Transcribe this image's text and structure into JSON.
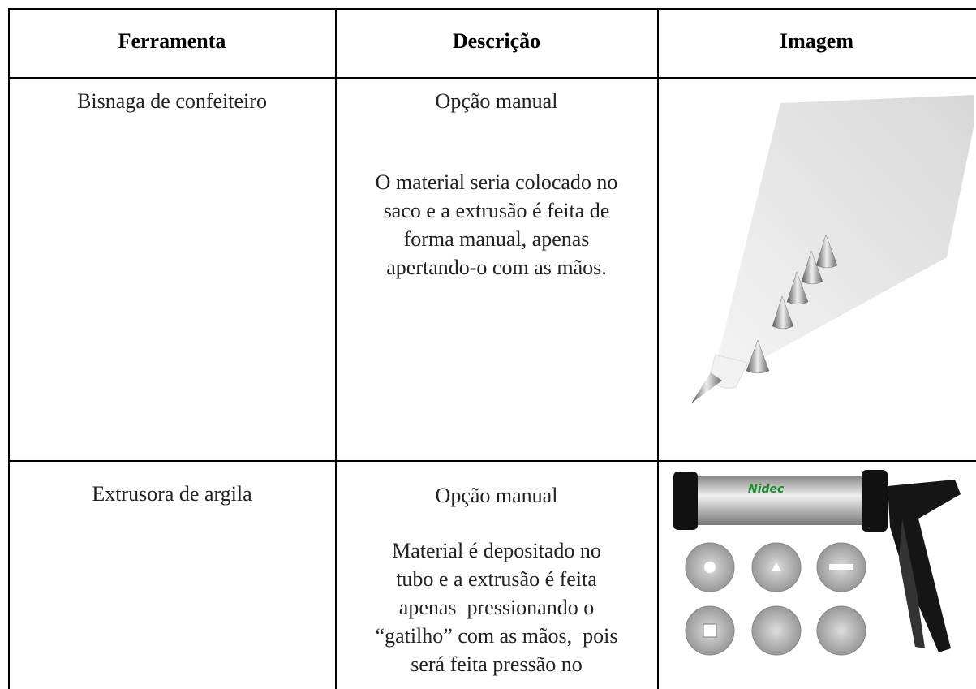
{
  "table": {
    "header": [
      "Ferramenta",
      "Descrição",
      "Imagem"
    ],
    "rows": [
      {
        "tool": "Bisnaga de confeiteiro",
        "option": "Opção manual",
        "description": [
          "O material seria colocado no",
          "saco e a extrusão é feita de",
          "forma manual, apenas",
          "apertando-o com as mãos."
        ]
      },
      {
        "tool": "Extrusora de argila",
        "option": "Opção manual",
        "description": [
          "Material é depositado no",
          "tubo e a extrusão é feita",
          "apenas  pressionando o",
          "“gatilho” com as mãos,  pois",
          "será feita pressão no"
        ]
      }
    ]
  }
}
